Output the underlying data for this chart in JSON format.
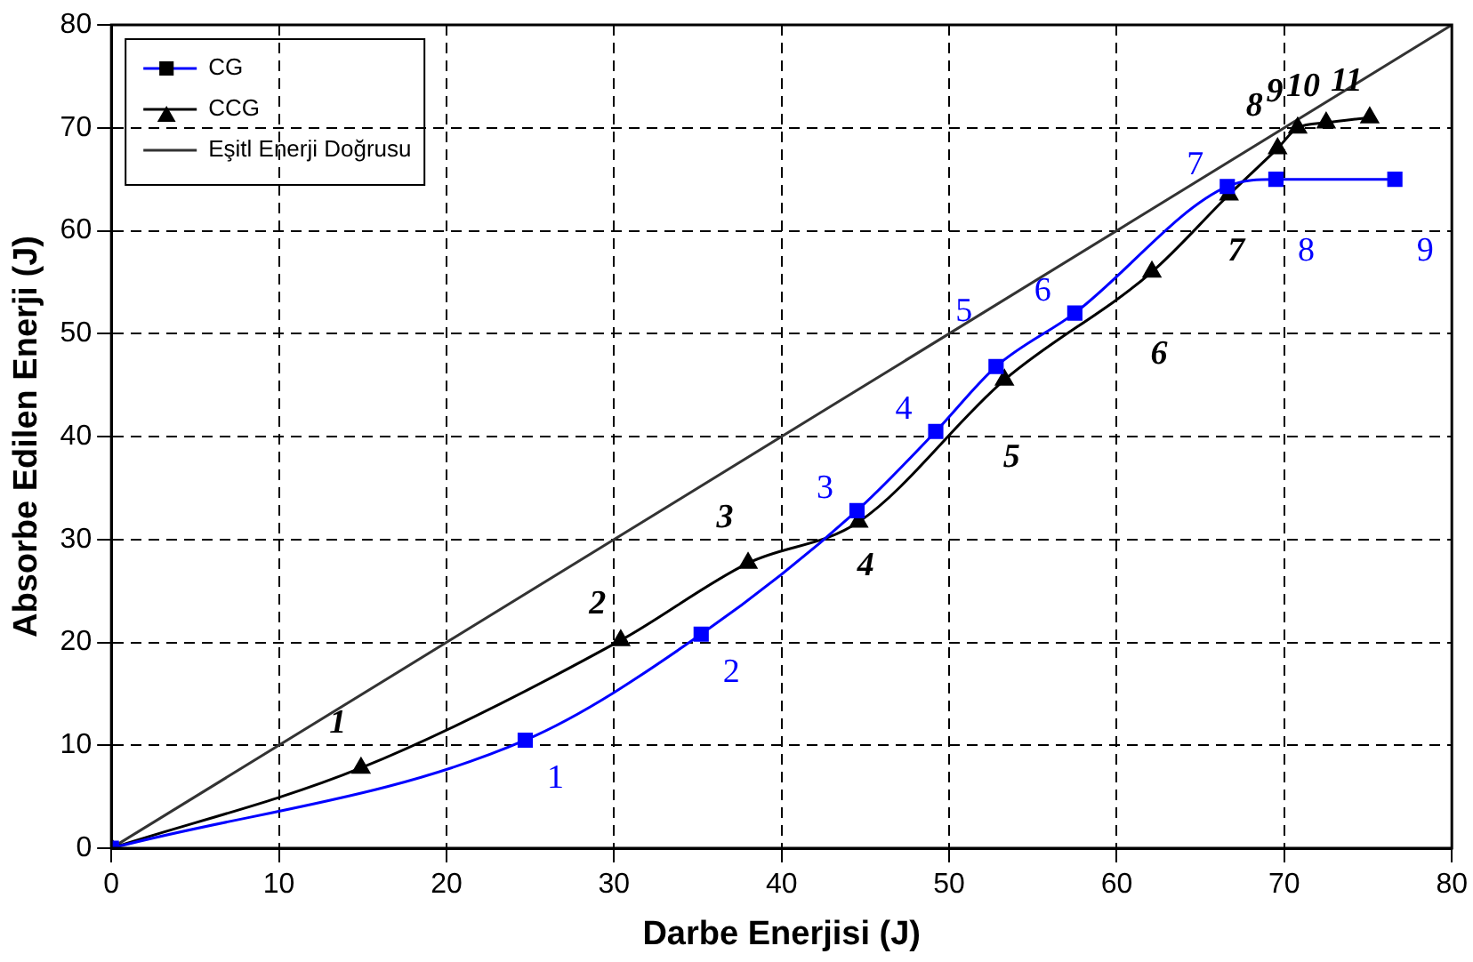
{
  "chart_data": {
    "type": "line",
    "xlabel": "Darbe Enerjisi (J)",
    "ylabel": "Absorbe Edilen Enerji (J)",
    "xlim": [
      0,
      80
    ],
    "xticks": [
      0,
      10,
      20,
      30,
      40,
      50,
      60,
      70,
      80
    ],
    "ylim": [
      0,
      80
    ],
    "yticks": [
      0,
      10,
      20,
      30,
      40,
      50,
      60,
      70,
      80
    ],
    "grid": true,
    "legend": "top left",
    "series": [
      {
        "name": "CG",
        "color": "#0000ff",
        "marker": "square",
        "x": [
          0,
          24.7,
          35.2,
          44.5,
          49.2,
          52.8,
          57.5,
          66.6,
          69.5,
          76.6
        ],
        "values": [
          0,
          10.5,
          20.8,
          32.8,
          40.5,
          46.8,
          52,
          64.3,
          65,
          65
        ]
      },
      {
        "name": "CCG",
        "color": "#000000",
        "marker": "triangle",
        "x": [
          0,
          14.9,
          30.4,
          38,
          44.6,
          53.3,
          62.1,
          66.7,
          69.6,
          70.8,
          72.5,
          75.1
        ],
        "values": [
          0,
          7.8,
          20.2,
          27.7,
          31.7,
          45.5,
          56,
          63.5,
          68,
          70,
          70.5,
          71
        ]
      },
      {
        "name": "Eşitl Enerji Doğrusu",
        "color": "#333333",
        "marker": "none",
        "x": [
          0,
          80
        ],
        "values": [
          0,
          80
        ]
      }
    ],
    "annotations": [
      {
        "text": "1",
        "x": 24.7,
        "y": 10.5
      },
      {
        "text": "2",
        "x": 35.2,
        "y": 20.8
      },
      {
        "text": "3",
        "x": 44.5,
        "y": 32.8
      },
      {
        "text": "4",
        "x": 49.2,
        "y": 40.5
      },
      {
        "text": "5",
        "x": 52.8,
        "y": 46.8
      },
      {
        "text": "6",
        "x": 57.5,
        "y": 52
      },
      {
        "text": "7",
        "x": 66.6,
        "y": 64.3
      },
      {
        "text": "8",
        "x": 69.5,
        "y": 65
      },
      {
        "text": "9",
        "x": 76.6,
        "y": 65
      },
      {
        "text": "1",
        "x": 14.9,
        "y": 7.8
      },
      {
        "text": "2",
        "x": 30.4,
        "y": 20.2
      },
      {
        "text": "3",
        "x": 38,
        "y": 27.7
      },
      {
        "text": "4",
        "x": 44.6,
        "y": 31.7
      },
      {
        "text": "5",
        "x": 53.3,
        "y": 45.5
      },
      {
        "text": "6",
        "x": 62.1,
        "y": 56
      },
      {
        "text": "7",
        "x": 66.7,
        "y": 63.5
      },
      {
        "text": "8",
        "x": 69.6,
        "y": 68
      },
      {
        "text": "9",
        "x": 70.8,
        "y": 70
      },
      {
        "text": "10",
        "x": 72.5,
        "y": 70.5
      },
      {
        "text": "11",
        "x": 75.1,
        "y": 71
      }
    ]
  }
}
